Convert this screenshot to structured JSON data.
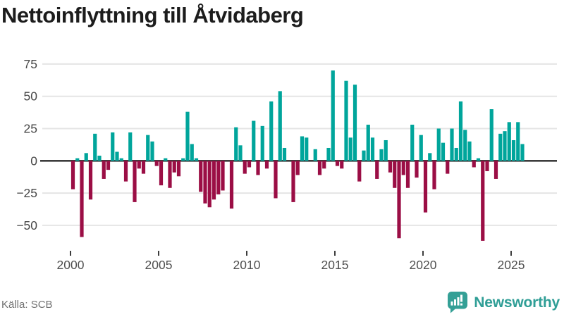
{
  "header": {
    "title": "Nettoinflyttning till Åtvidaberg"
  },
  "footer": {
    "source": "Källa: SCB",
    "brand": "Newsworthy",
    "logo_icon": "newsworthy-speech-bubble-bar-chart-icon"
  },
  "chart_data": {
    "type": "bar",
    "title": "Nettoinflyttning till Åtvidaberg",
    "frequency": "quarterly",
    "start_period": "2000Q1",
    "end_period": "2025Q3",
    "values": [
      -22,
      2,
      -59,
      6,
      -30,
      21,
      4,
      -14,
      -7,
      22,
      7,
      2,
      -16,
      22,
      -32,
      -6,
      -10,
      20,
      15,
      -4,
      -19,
      2,
      -21,
      -9,
      -12,
      2,
      38,
      13,
      2,
      -24,
      -33,
      -36,
      -30,
      -26,
      -23,
      0,
      -37,
      26,
      12,
      -10,
      -5,
      31,
      -11,
      27,
      -6,
      46,
      -29,
      54,
      10,
      0,
      -32,
      -11,
      19,
      18,
      0,
      9,
      -11,
      -6,
      10,
      70,
      -4,
      -6,
      62,
      18,
      59,
      -16,
      8,
      28,
      18,
      -14,
      9,
      16,
      -9,
      -21,
      -60,
      -11,
      -21,
      28,
      -13,
      20,
      -40,
      6,
      -22,
      25,
      14,
      -10,
      25,
      10,
      46,
      24,
      15,
      -5,
      2,
      -62,
      -8,
      40,
      -14,
      21,
      23,
      30,
      16,
      30,
      13
    ],
    "x_tick_years": [
      2000,
      2005,
      2010,
      2015,
      2020,
      2025
    ],
    "y_ticks": [
      75,
      50,
      25,
      0,
      -25,
      -50
    ],
    "ylim": [
      -70,
      80
    ],
    "grid": true,
    "legend": "none",
    "xlabel": "",
    "ylabel": "",
    "colors": {
      "positive": "#00a59b",
      "negative": "#9b0e45"
    }
  }
}
